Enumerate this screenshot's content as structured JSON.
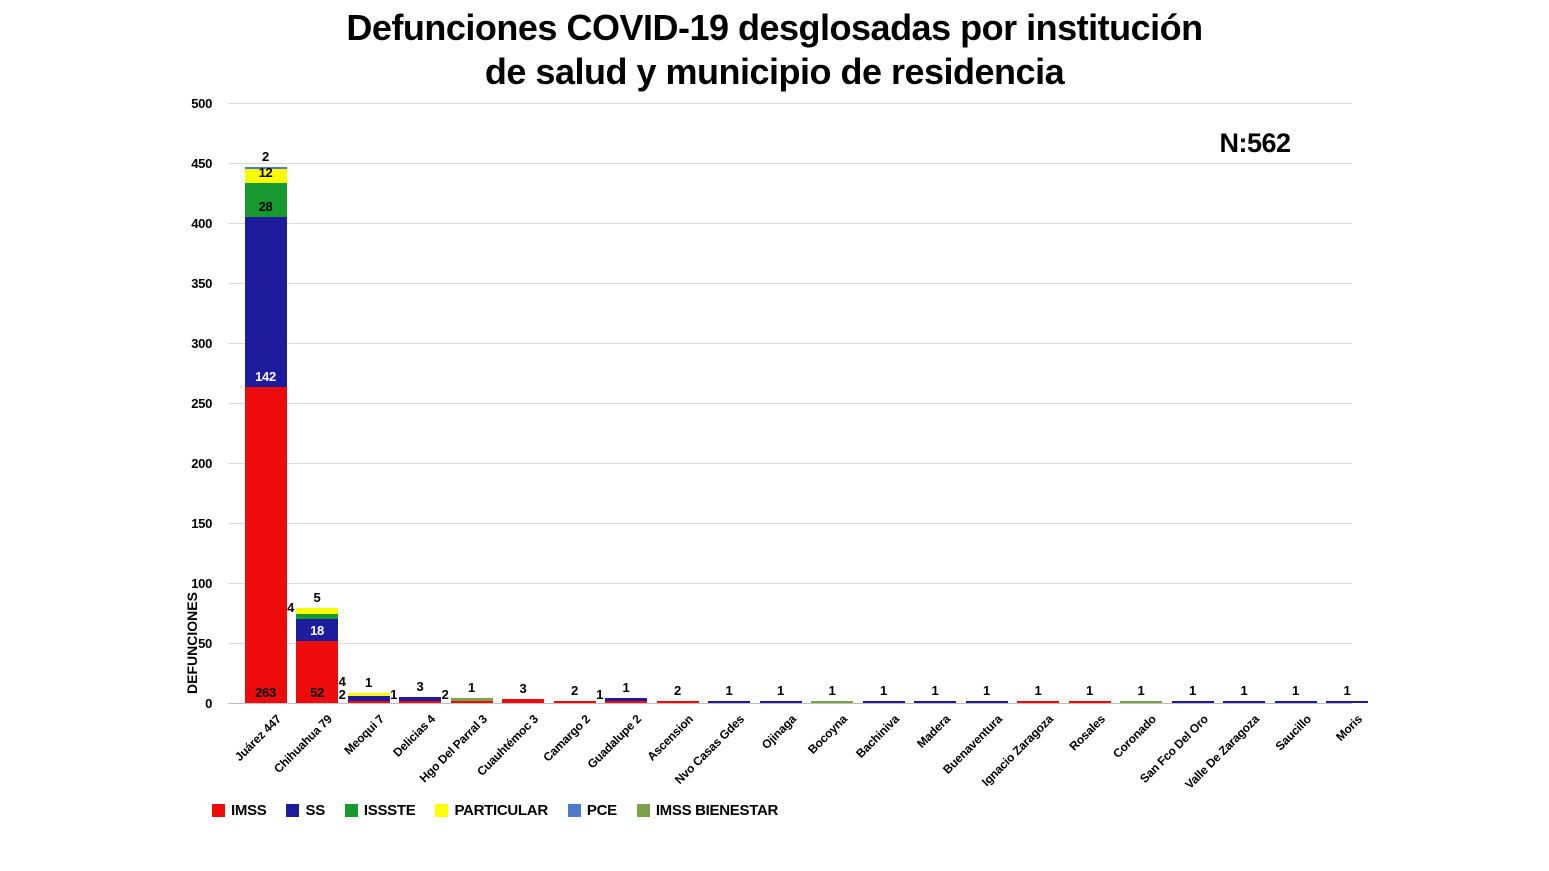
{
  "header": {
    "title_lines": [
      "Defunciones COVID-19 desglosadas por institución",
      "de salud y municipio de residencia"
    ]
  },
  "annotation": "N:562",
  "chart_data": {
    "type": "bar",
    "stacked": true,
    "title": "Defunciones COVID-19 desglosadas por institución de salud y municipio de residencia",
    "ylabel": "DEFUNCIONES",
    "xlabel": "",
    "ylim": [
      0,
      500
    ],
    "ytick_step": 50,
    "grid": true,
    "legend_position": "bottom-left",
    "total_label": "N:562",
    "total_n": 562,
    "categories": [
      "Juárez 447",
      "Chihuahua 79",
      "Meoqui 7",
      "Delicias 4",
      "Hgo Del Parral 3",
      "Cuauhtémoc 3",
      "Camargo 2",
      "Guadalupe 2",
      "Ascension",
      "Nvo Casas Gdes",
      "Ojinaga",
      "Bocoyna",
      "Bachiniva",
      "Madera",
      "Buenaventura",
      "Ignacio Zaragoza",
      "Rosales",
      "Coronado",
      "San Fco Del Oro",
      "Valle De Zaragoza",
      "Saucillo",
      "Moris"
    ],
    "series": [
      {
        "name": "IMSS",
        "color": "#ee0b0b",
        "values": [
          263,
          52,
          2,
          1,
          2,
          3,
          2,
          1,
          2,
          0,
          0,
          0,
          0,
          0,
          0,
          1,
          1,
          0,
          0,
          0,
          0,
          0
        ]
      },
      {
        "name": "SS",
        "color": "#1c1c9c",
        "values": [
          142,
          18,
          4,
          3,
          0,
          0,
          0,
          1,
          0,
          1,
          1,
          0,
          1,
          1,
          1,
          0,
          0,
          0,
          1,
          1,
          1,
          1
        ]
      },
      {
        "name": "ISSSTE",
        "color": "#169a2f",
        "values": [
          28,
          4,
          0,
          0,
          0,
          0,
          0,
          0,
          0,
          0,
          0,
          0,
          0,
          0,
          0,
          0,
          0,
          0,
          0,
          0,
          0,
          0
        ]
      },
      {
        "name": "PARTICULAR",
        "color": "#ffff00",
        "values": [
          12,
          5,
          1,
          0,
          0,
          0,
          0,
          0,
          0,
          0,
          0,
          0,
          0,
          0,
          0,
          0,
          0,
          0,
          0,
          0,
          0,
          0
        ]
      },
      {
        "name": "PCE",
        "color": "#4d79c7",
        "values": [
          2,
          0,
          0,
          0,
          0,
          0,
          0,
          0,
          0,
          0,
          0,
          0,
          0,
          0,
          0,
          0,
          0,
          0,
          0,
          0,
          0,
          0
        ]
      },
      {
        "name": "IMSS BIENESTAR",
        "color": "#7ba14b",
        "values": [
          0,
          0,
          0,
          0,
          1,
          0,
          0,
          0,
          0,
          0,
          0,
          1,
          0,
          0,
          0,
          0,
          0,
          1,
          0,
          0,
          0,
          0
        ]
      }
    ]
  }
}
